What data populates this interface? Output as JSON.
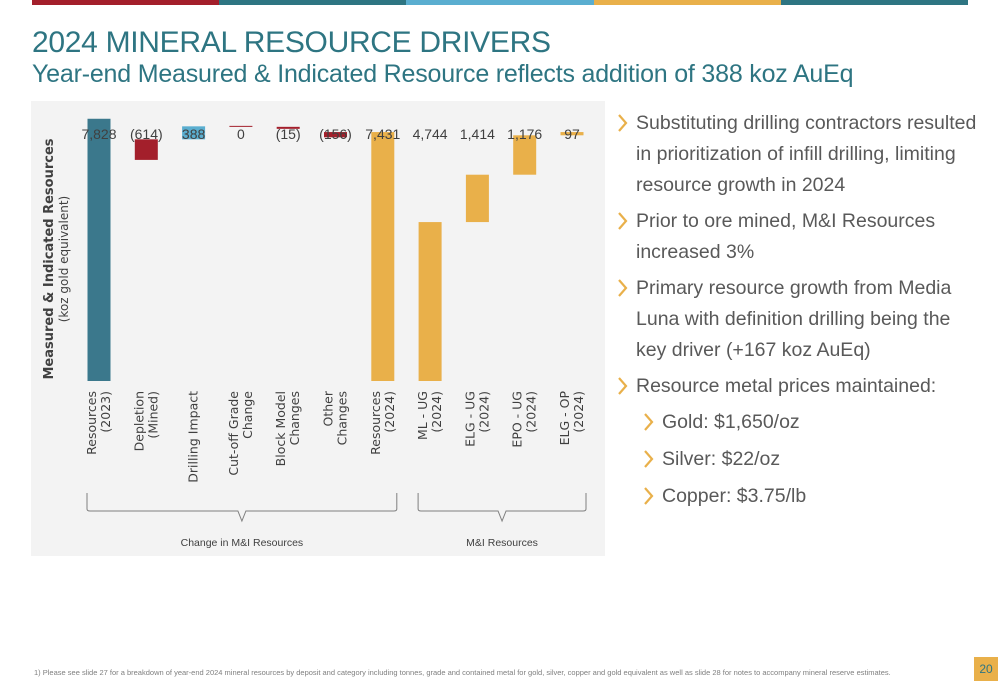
{
  "header": {
    "title": "2024 MINERAL RESOURCE DRIVERS",
    "subtitle": "Year-end Measured & Indicated Resource reflects addition of 388 koz AuEq",
    "bar_colors": [
      "#a31f2b",
      "#2e7582",
      "#5aaed0",
      "#e9b04a",
      "#2e7582"
    ]
  },
  "chart_data": {
    "type": "bar",
    "subtype": "waterfall",
    "ylabel": "Measured & Indicated Resources",
    "ylabel_sub": "(koz gold equivalent)",
    "ylim": [
      0,
      8000
    ],
    "categories": [
      "Resources (2023)",
      "Depletion (Mined)",
      "Drilling Impact",
      "Cut-off Grade Change",
      "Block Model Changes",
      "Other Changes",
      "Resources (2024)",
      "ML - UG (2024)",
      "ELG - UG (2024)",
      "EPO - UG (2024)",
      "ELG - OP (2024)"
    ],
    "tick_lines": [
      [
        "Resources",
        "(2023)"
      ],
      [
        "Depletion",
        "(Mined)"
      ],
      [
        "Drilling Impact"
      ],
      [
        "Cut-off Grade",
        "Change"
      ],
      [
        "Block Model",
        "Changes"
      ],
      [
        "Other",
        "Changes"
      ],
      [
        "Resources",
        "(2024)"
      ],
      [
        "ML - UG",
        "(2024)"
      ],
      [
        "ELG - UG",
        "(2024)"
      ],
      [
        "EPO - UG",
        "(2024)"
      ],
      [
        "ELG - OP",
        "(2024)"
      ]
    ],
    "values": [
      7828,
      -614,
      388,
      0,
      -15,
      -156,
      7431,
      4744,
      1414,
      1176,
      97
    ],
    "bases": [
      0,
      7214,
      7214,
      7602,
      7587,
      7431,
      0,
      0,
      4744,
      6158,
      7334
    ],
    "value_labels": [
      "7,828",
      "(614)",
      "388",
      "0",
      "(15)",
      "(156)",
      "7,431",
      "4,744",
      "1,414",
      "1,176",
      "97"
    ],
    "colors": [
      "#3b788c",
      "#a31f2b",
      "#5aaed0",
      "#a31f2b",
      "#a31f2b",
      "#a31f2b",
      "#e9b04a",
      "#e9b04a",
      "#e9b04a",
      "#e9b04a",
      "#e9b04a"
    ],
    "groups": [
      {
        "label": "Change in M&I Resources",
        "from": 0,
        "to": 6
      },
      {
        "label": "M&I Resources",
        "from": 7,
        "to": 10
      }
    ],
    "grid": false,
    "legend": "none"
  },
  "bullets": [
    {
      "text": "Substituting drilling contractors resulted in prioritization of infill drilling, limiting resource growth in 2024",
      "level": 1
    },
    {
      "text": "Prior to ore mined, M&I Resources increased 3%",
      "level": 1
    },
    {
      "text": "Primary resource growth from Media Luna with definition drilling being the key driver (+167 koz AuEq)",
      "level": 1
    },
    {
      "text": "Resource metal prices maintained:",
      "level": 1
    },
    {
      "text": "Gold: $1,650/oz",
      "level": 2
    },
    {
      "text": "Silver: $22/oz",
      "level": 2
    },
    {
      "text": "Copper: $3.75/lb",
      "level": 2
    }
  ],
  "footnote": "1)      Please see slide 27 for a breakdown of year-end 2024 mineral resources by deposit and category including tonnes, grade and contained metal for gold, silver, copper and gold equivalent as well as slide 28 for notes to accompany mineral reserve estimates.",
  "page_number": "20"
}
